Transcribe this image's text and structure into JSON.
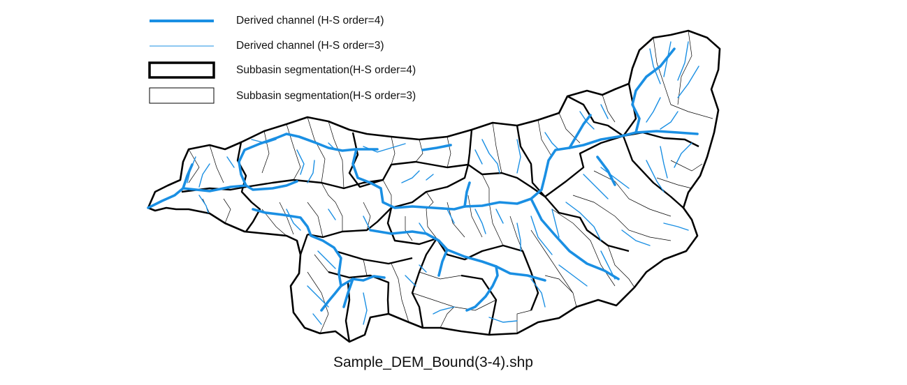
{
  "legend": {
    "items": [
      {
        "label": "Derived channel (H-S order=4)",
        "symbol": "line-thick",
        "color": "#1a8fe3"
      },
      {
        "label": "Derived channel (H-S order=3)",
        "symbol": "line-thin",
        "color": "#1a8fe3"
      },
      {
        "label": "Subbasin segmentation(H-S order=4)",
        "symbol": "box-thick",
        "color": "#000000"
      },
      {
        "label": "Subbasin segmentation(H-S order=3)",
        "symbol": "box-thin",
        "color": "#000000"
      }
    ]
  },
  "caption": "Sample_DEM_Bound(3-4).shp",
  "colors": {
    "channel": "#1a8fe3",
    "boundary": "#000000",
    "background": "#ffffff"
  }
}
